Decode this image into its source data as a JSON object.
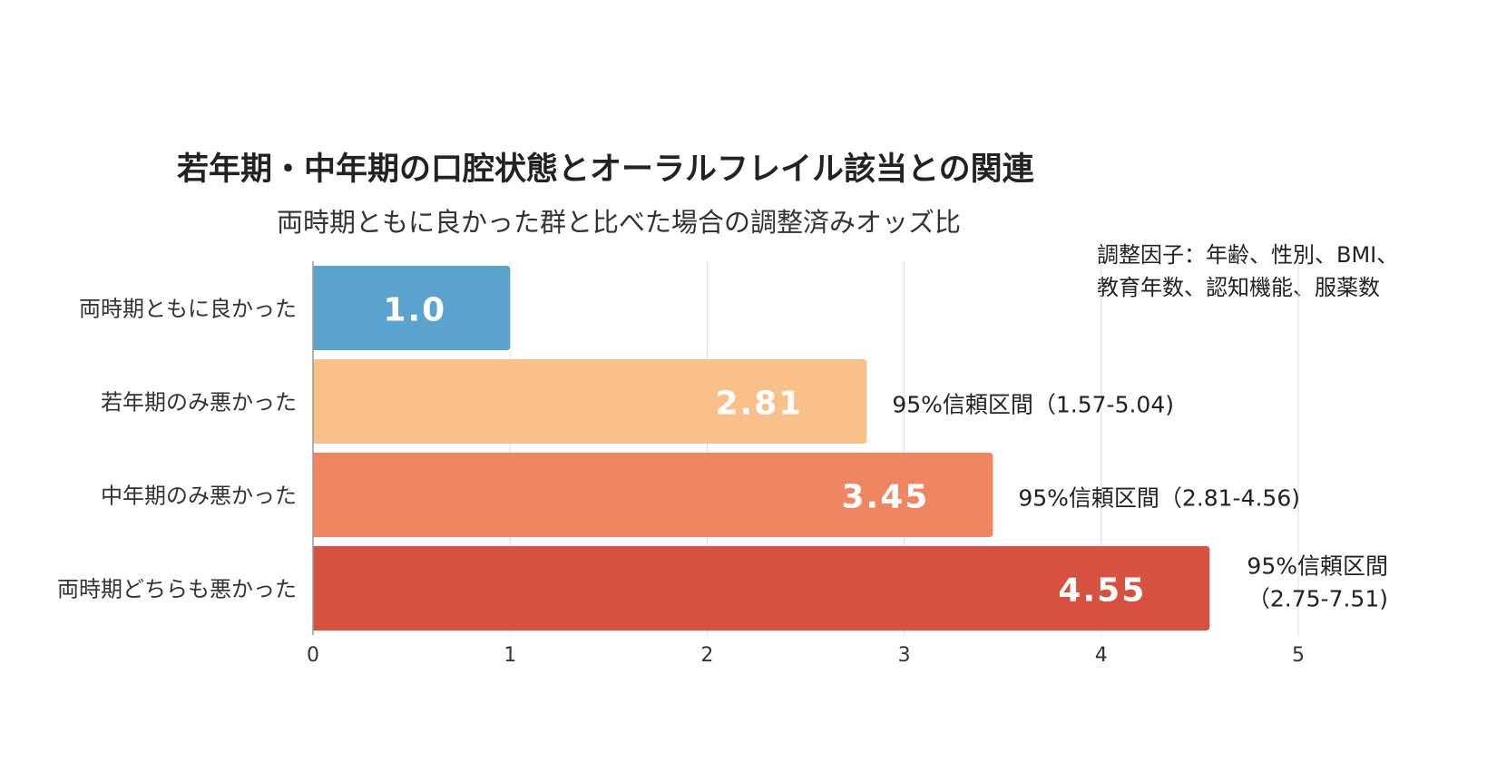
{
  "chart_data": {
    "type": "bar",
    "orientation": "horizontal",
    "title": "若年期・中年期の口腔状態とオーラルフレイル該当との関連",
    "subtitle": "両時期ともに良かった群と比べた場合の調整済みオッズ比",
    "note_lines": [
      "調整因子：年齢、性別、BMI、",
      "教育年数、認知機能、服薬数"
    ],
    "categories": [
      "両時期ともに良かった",
      "若年期のみ悪かった",
      "中年期のみ悪かった",
      "両時期どちらも悪かった"
    ],
    "values": [
      1.0,
      2.81,
      3.45,
      4.55
    ],
    "value_labels": [
      "1.0",
      "2.81",
      "3.45",
      "4.55"
    ],
    "ci_labels": [
      [],
      [
        "95%信頼区間（1.57-5.04)"
      ],
      [
        "95%信頼区間（2.81-4.56)"
      ],
      [
        "95%信頼区間",
        "（2.75-7.51)"
      ]
    ],
    "colors": [
      "#5ba3cf",
      "#f9c08a",
      "#f08562",
      "#d65140"
    ],
    "xlim": [
      0,
      5
    ],
    "xticks": [
      "0",
      "1",
      "2",
      "3",
      "4",
      "5"
    ],
    "grid": true
  }
}
